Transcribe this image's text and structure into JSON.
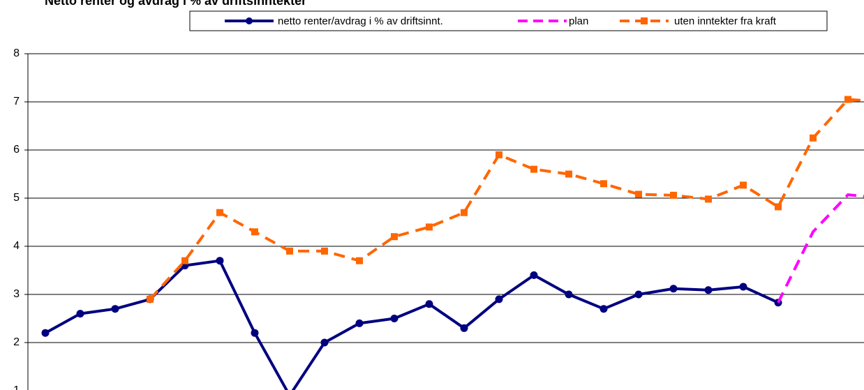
{
  "chart_data": {
    "type": "line",
    "title": "Netto renter og avdrag i % av driftsinntekter",
    "categories": [
      null,
      null,
      null,
      null,
      null,
      null,
      null,
      null,
      null,
      null,
      null,
      null,
      null,
      null,
      null,
      null,
      null,
      null,
      null,
      null,
      null,
      null,
      null,
      null,
      null
    ],
    "series": [
      {
        "name": "netto renter/avdrag i % av driftsinnt.",
        "color": "#000080",
        "dash": "solid",
        "marker": "circle",
        "values": [
          2.2,
          2.6,
          2.7,
          2.9,
          3.6,
          3.7,
          2.2,
          0.9,
          2.0,
          2.4,
          2.5,
          2.8,
          2.3,
          2.9,
          3.4,
          3.0,
          2.7,
          3.0,
          3.12,
          3.09,
          3.16,
          2.83,
          null,
          null,
          null
        ]
      },
      {
        "name": "plan",
        "color": "#ff00ff",
        "dash": "dashed",
        "marker": "none",
        "values": [
          null,
          null,
          null,
          null,
          null,
          null,
          null,
          null,
          null,
          null,
          null,
          null,
          null,
          null,
          null,
          null,
          null,
          null,
          null,
          null,
          null,
          2.83,
          4.3,
          5.07,
          5.0
        ]
      },
      {
        "name": "uten inntekter fra kraft",
        "color": "#ff6600",
        "dash": "dashed",
        "marker": "square",
        "values": [
          null,
          null,
          null,
          2.9,
          3.7,
          4.7,
          4.3,
          3.9,
          3.9,
          3.7,
          4.2,
          4.4,
          4.7,
          5.9,
          5.6,
          5.5,
          5.3,
          5.08,
          5.06,
          4.98,
          5.27,
          4.82,
          6.25,
          7.05,
          7.0
        ]
      }
    ],
    "ylim": [
      0,
      8
    ],
    "yticks": [
      1,
      2,
      3,
      4,
      5,
      6,
      7,
      8
    ],
    "grid": true,
    "legend": "top"
  }
}
